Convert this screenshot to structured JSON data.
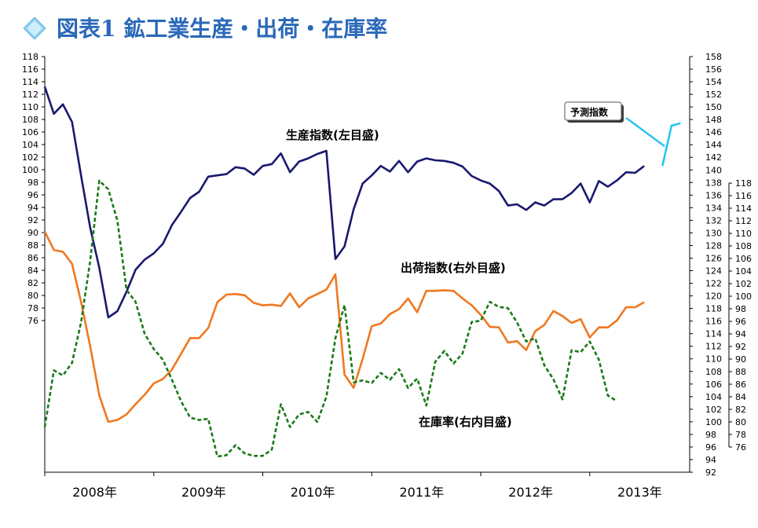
{
  "title": "図表1 鉱工業生産・出荷・在庫率",
  "colors": {
    "production": "#191970",
    "shipments": "#f07820",
    "inventory": "#1a7a1a",
    "forecast": "#29c4f0",
    "title": "#2a68b8",
    "title_diamond": "#8fd0ef"
  },
  "chart_data": {
    "type": "line",
    "x_ticks": [
      "2008年",
      "2009年",
      "2010年",
      "2011年",
      "2012年",
      "2013年"
    ],
    "x_range": [
      "2008-01",
      "2013-12"
    ],
    "axes": {
      "left": {
        "ylim": [
          76,
          118
        ],
        "ticks": [
          76,
          78,
          80,
          82,
          84,
          86,
          88,
          90,
          92,
          94,
          96,
          98,
          100,
          102,
          104,
          106,
          108,
          110,
          112,
          114,
          116,
          118
        ]
      },
      "right_outer": {
        "ylim": [
          92,
          158
        ],
        "ticks": [
          92,
          94,
          96,
          98,
          100,
          102,
          104,
          106,
          108,
          110,
          112,
          114,
          116,
          118,
          120,
          122,
          124,
          126,
          128,
          130,
          132,
          134,
          136,
          138,
          140,
          142,
          144,
          146,
          148,
          150,
          152,
          154,
          156,
          158
        ]
      },
      "right_inner": {
        "ylim": [
          76,
          118
        ],
        "ticks": [
          76,
          78,
          80,
          82,
          84,
          86,
          88,
          90,
          92,
          94,
          96,
          98,
          100,
          102,
          104,
          106,
          108,
          110,
          112,
          114,
          116,
          118
        ]
      }
    },
    "series": [
      {
        "name": "生産指数(左目盛)",
        "axis": "left",
        "start": "2008-01",
        "values": [
          113.2,
          108.9,
          110.4,
          107.6,
          99.0,
          90.8,
          84.4,
          76.5,
          77.5,
          80.6,
          84.1,
          85.7,
          86.7,
          88.2,
          91.2,
          93.3,
          95.5,
          96.5,
          98.9,
          99.1,
          99.3,
          100.4,
          100.2,
          99.2,
          100.6,
          100.9,
          102.6,
          99.6,
          101.3,
          101.8,
          102.5,
          103.0,
          85.8,
          87.8,
          93.7,
          97.8,
          99.1,
          100.6,
          99.7,
          101.4,
          99.6,
          101.3,
          101.8,
          101.5,
          101.4,
          101.1,
          100.5,
          99.0,
          98.3,
          97.8,
          96.6,
          94.3,
          94.5,
          93.6,
          94.8,
          94.3,
          95.3,
          95.3,
          96.3,
          97.8,
          94.8,
          98.2,
          97.3,
          98.3,
          99.6,
          99.5,
          100.6
        ]
      },
      {
        "name": "出荷指数(右外目盛)",
        "axis": "right_outer",
        "start": "2008-01",
        "values": [
          130.2,
          127.3,
          127.0,
          125.1,
          119.0,
          112.0,
          104.2,
          100.0,
          100.3,
          101.2,
          102.8,
          104.3,
          106.1,
          106.8,
          108.3,
          110.8,
          113.3,
          113.3,
          114.9,
          119.0,
          120.2,
          120.3,
          120.1,
          118.9,
          118.5,
          118.6,
          118.4,
          120.4,
          118.2,
          119.6,
          120.3,
          121.0,
          123.4,
          107.5,
          105.4,
          110.0,
          115.2,
          115.6,
          117.1,
          117.9,
          119.6,
          117.4,
          120.8,
          120.8,
          120.9,
          120.8,
          119.6,
          118.5,
          117.0,
          115.1,
          115.0,
          112.6,
          112.8,
          111.4,
          114.4,
          115.4,
          117.6,
          116.8,
          115.7,
          116.3,
          113.4,
          115.0,
          115.0,
          116.1,
          118.2,
          118.2,
          119.0
        ]
      },
      {
        "name": "在庫率(右内目盛)",
        "axis": "right_inner",
        "start": "2008-01",
        "values": [
          79.2,
          88.2,
          87.4,
          89.4,
          95.9,
          105.6,
          118.4,
          117.0,
          112.0,
          101.0,
          99.1,
          94.0,
          91.6,
          89.9,
          86.7,
          83.3,
          80.7,
          80.3,
          80.5,
          74.5,
          74.7,
          76.3,
          75.0,
          74.6,
          74.6,
          75.6,
          82.8,
          79.2,
          81.2,
          81.6,
          80.0,
          84.0,
          93.3,
          98.6,
          86.3,
          86.6,
          86.2,
          87.8,
          86.7,
          88.4,
          85.4,
          86.9,
          82.6,
          89.6,
          91.3,
          89.3,
          90.9,
          95.9,
          96.1,
          99.1,
          98.3,
          98.1,
          95.8,
          92.8,
          93.3,
          89.0,
          86.8,
          83.6,
          91.4,
          91.1,
          92.8,
          89.9,
          84.2,
          83.3
        ]
      },
      {
        "name": "予測指数",
        "axis": "left",
        "start": "2013-09",
        "values": [
          100.6,
          107.0,
          107.4
        ]
      }
    ],
    "annotations": {
      "production_label": "生産指数(左目盛)",
      "shipments_label": "出荷指数(右外目盛)",
      "inventory_label": "在庫率(右内目盛)",
      "forecast_label": "予測指数"
    }
  }
}
